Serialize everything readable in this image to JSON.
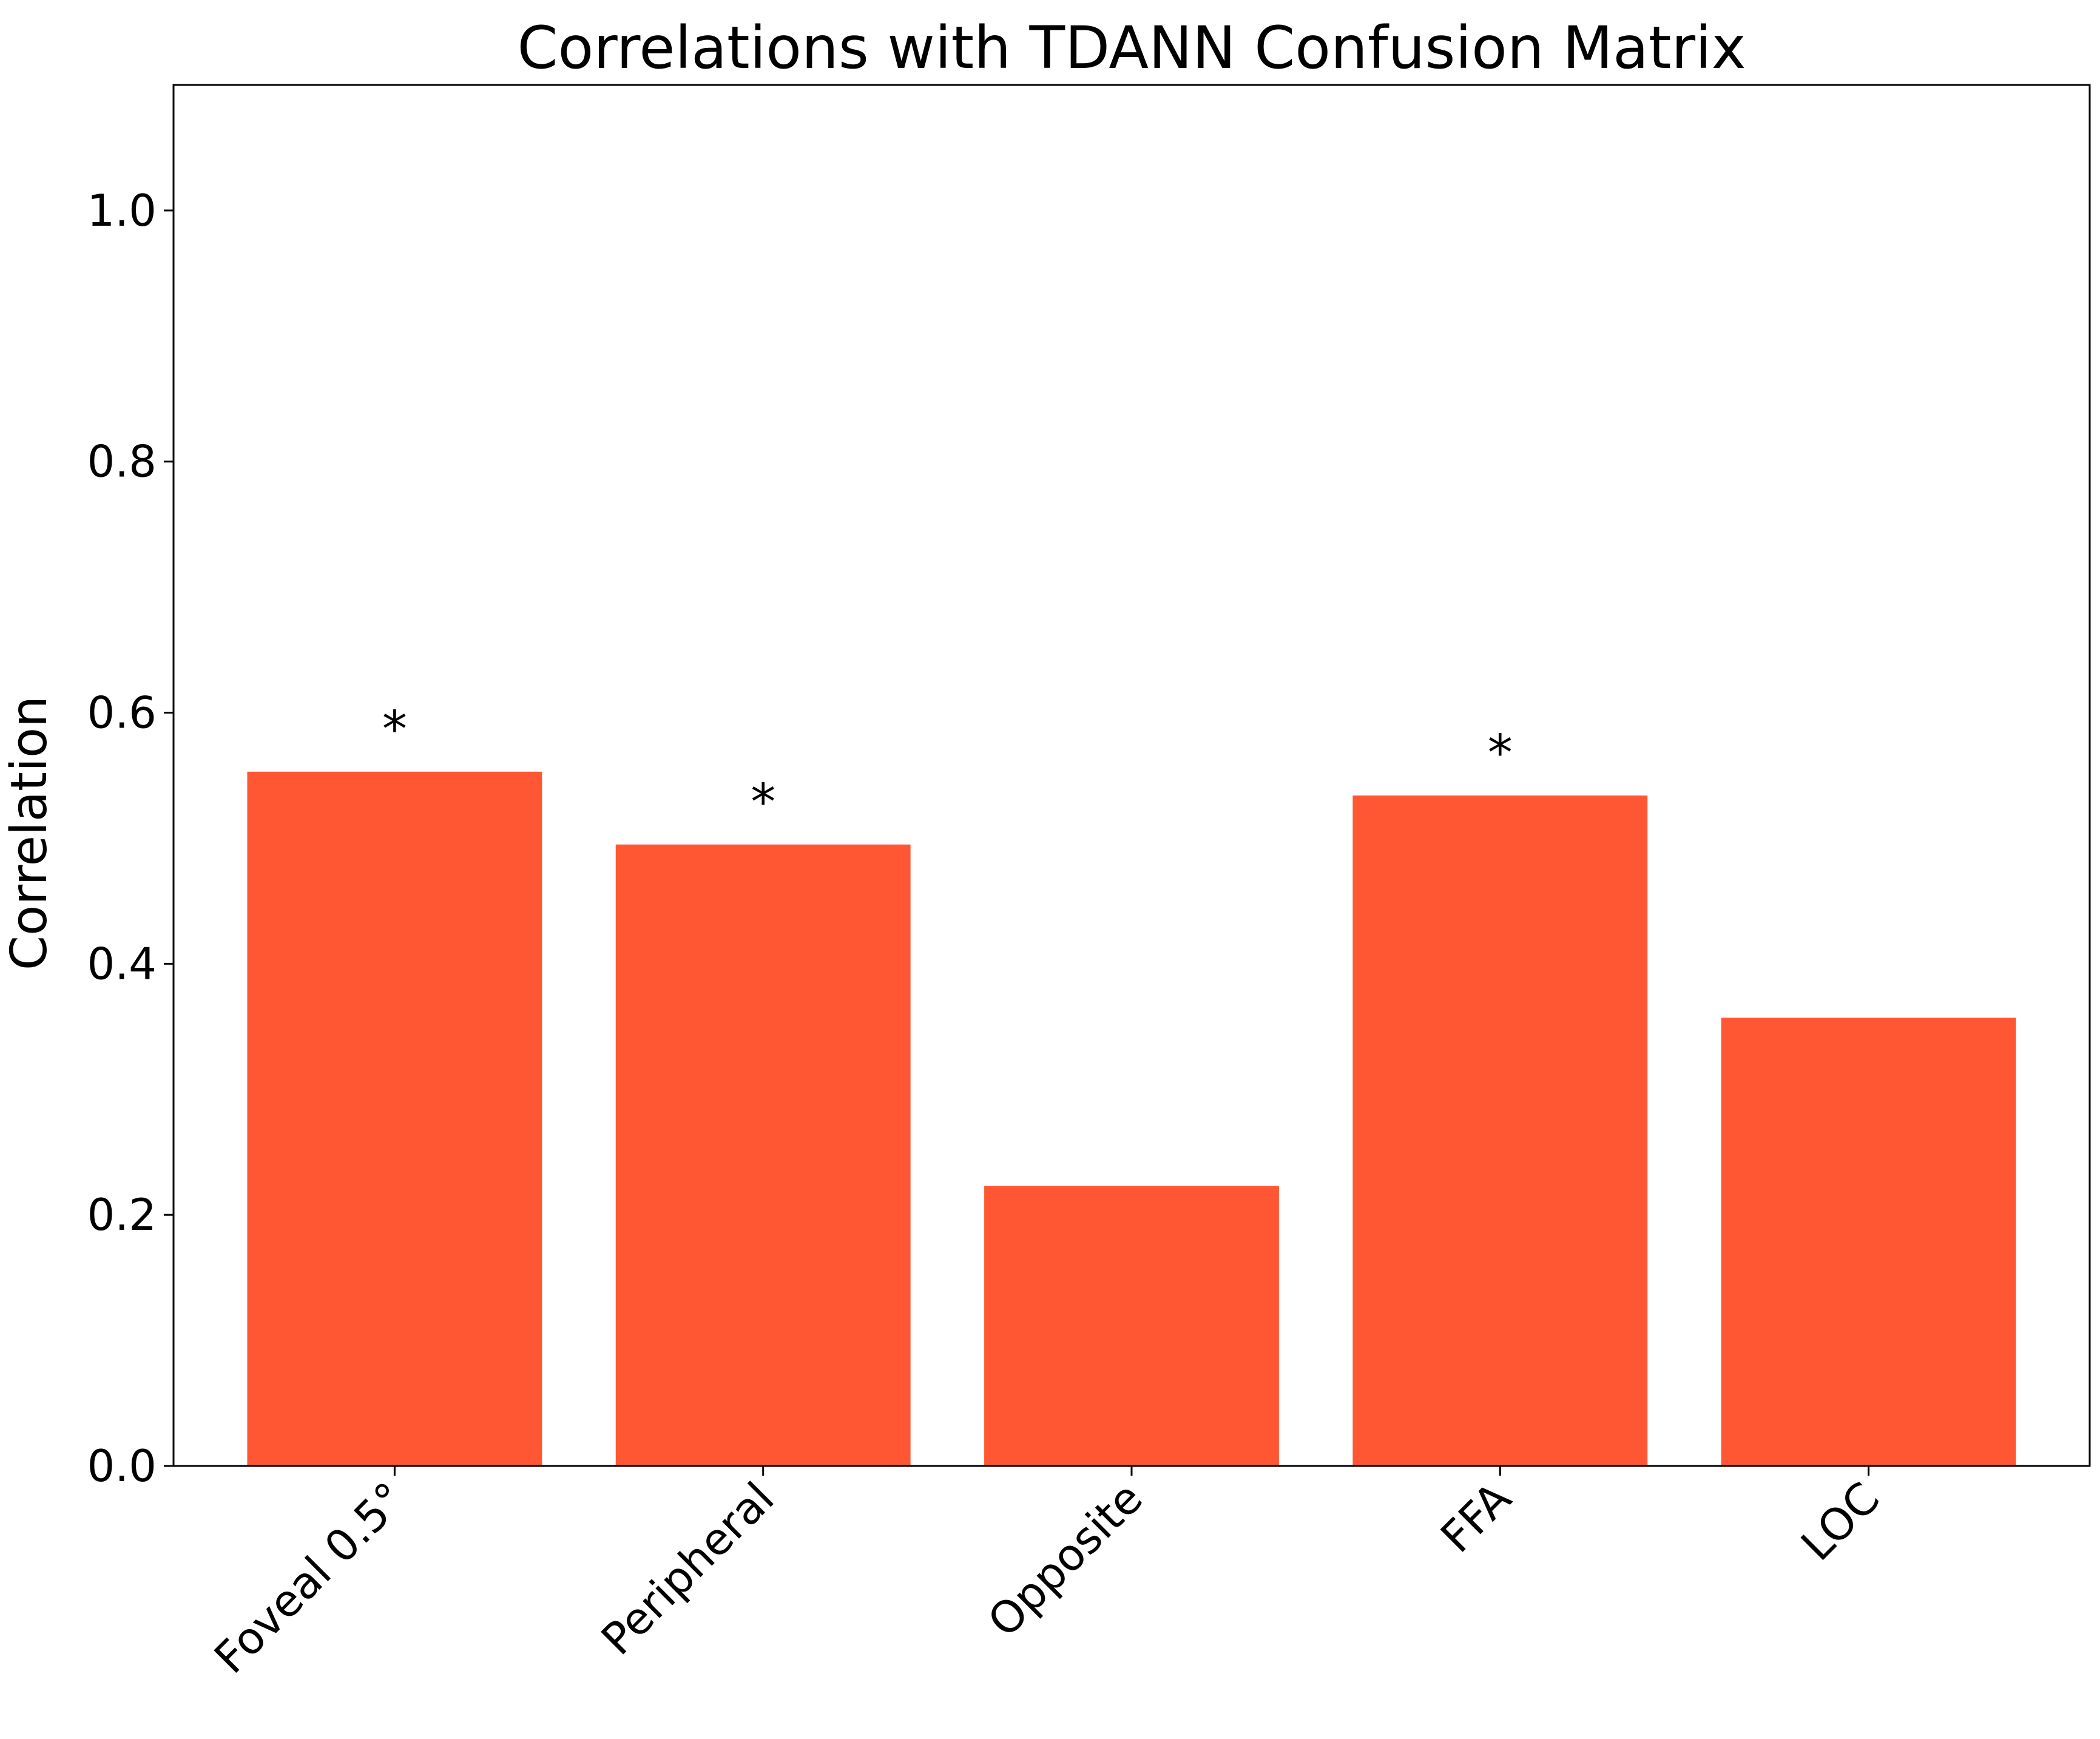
{
  "chart_data": {
    "type": "bar",
    "title": "Correlations with TDANN Confusion Matrix",
    "xlabel": "",
    "ylabel": "Correlation",
    "categories": [
      "Foveal 0.5°",
      "Peripheral",
      "Opposite",
      "FFA",
      "LOC"
    ],
    "values": [
      0.553,
      0.495,
      0.223,
      0.534,
      0.357
    ],
    "significance": [
      "*",
      "*",
      "",
      "*",
      ""
    ],
    "ylim": [
      0,
      1.1
    ],
    "yticks": [
      0.0,
      0.2,
      0.4,
      0.6,
      0.8,
      1.0
    ],
    "ytick_labels": [
      "0.0",
      "0.2",
      "0.4",
      "0.6",
      "0.8",
      "1.0"
    ],
    "bar_color": "#ff5733",
    "grid": false,
    "legend": "none"
  }
}
